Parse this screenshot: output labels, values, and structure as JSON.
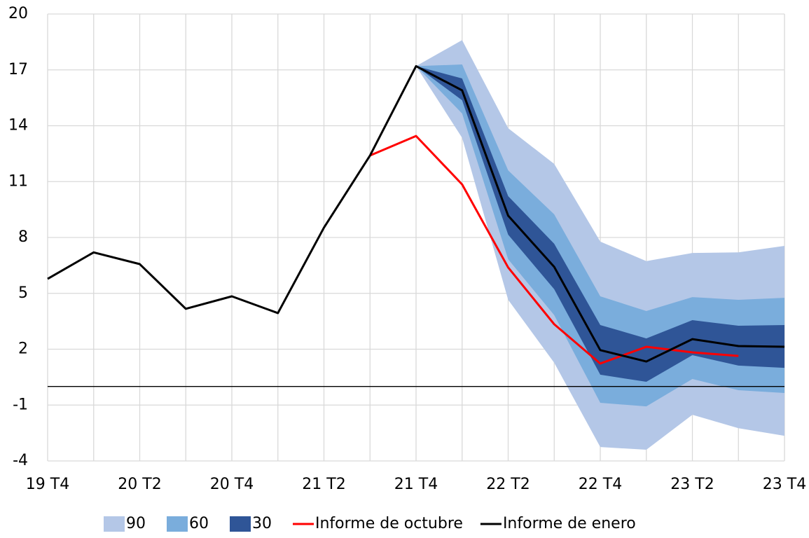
{
  "chart_data": {
    "type": "fan",
    "categories": [
      "19 T4",
      null,
      "20 T2",
      null,
      "20 T4",
      null,
      "21 T2",
      null,
      "21 T4",
      null,
      "22 T2",
      null,
      "22 T4",
      null,
      "23 T2",
      null,
      "23 T4"
    ],
    "ylim": [
      -4,
      20
    ],
    "yticks": [
      -4,
      -1,
      2,
      5,
      8,
      11,
      14,
      17,
      20
    ],
    "grid": true,
    "bands": [
      {
        "name": "90",
        "color": "#b4c7e7",
        "lower": [
          null,
          null,
          null,
          null,
          null,
          null,
          null,
          null,
          17.2,
          13.35,
          4.65,
          1.27,
          -3.25,
          -3.4,
          -1.52,
          -2.24,
          -2.65
        ],
        "upper": [
          null,
          null,
          null,
          null,
          null,
          null,
          null,
          null,
          17.2,
          18.6,
          13.87,
          11.95,
          7.78,
          6.73,
          7.17,
          7.2,
          7.55
        ]
      },
      {
        "name": "60",
        "color": "#7aaddc",
        "lower": [
          null,
          null,
          null,
          null,
          null,
          null,
          null,
          null,
          17.2,
          14.66,
          6.83,
          3.83,
          -0.88,
          -1.07,
          0.4,
          -0.2,
          -0.35
        ],
        "upper": [
          null,
          null,
          null,
          null,
          null,
          null,
          null,
          null,
          17.2,
          17.29,
          11.6,
          9.24,
          4.84,
          4.05,
          4.8,
          4.65,
          4.76
        ]
      },
      {
        "name": "30",
        "color": "#2f5597",
        "lower": [
          null,
          null,
          null,
          null,
          null,
          null,
          null,
          null,
          17.2,
          15.37,
          8.15,
          5.22,
          0.63,
          0.25,
          1.68,
          1.12,
          1.0
        ],
        "upper": [
          null,
          null,
          null,
          null,
          null,
          null,
          null,
          null,
          17.2,
          16.54,
          10.22,
          7.66,
          3.3,
          2.58,
          3.56,
          3.26,
          3.3
        ]
      }
    ],
    "series": [
      {
        "name": "Informe de octubre",
        "color": "#ff0000",
        "values": [
          null,
          null,
          null,
          null,
          null,
          null,
          null,
          12.4,
          13.45,
          10.85,
          6.39,
          3.34,
          1.23,
          2.13,
          1.83,
          1.64,
          null
        ]
      },
      {
        "name": "Informe de enero",
        "color": "#000000",
        "values": [
          5.78,
          7.2,
          6.57,
          4.17,
          4.84,
          3.94,
          8.53,
          12.4,
          17.2,
          15.9,
          9.17,
          6.42,
          1.95,
          1.34,
          2.54,
          2.17,
          2.13
        ]
      }
    ]
  }
}
